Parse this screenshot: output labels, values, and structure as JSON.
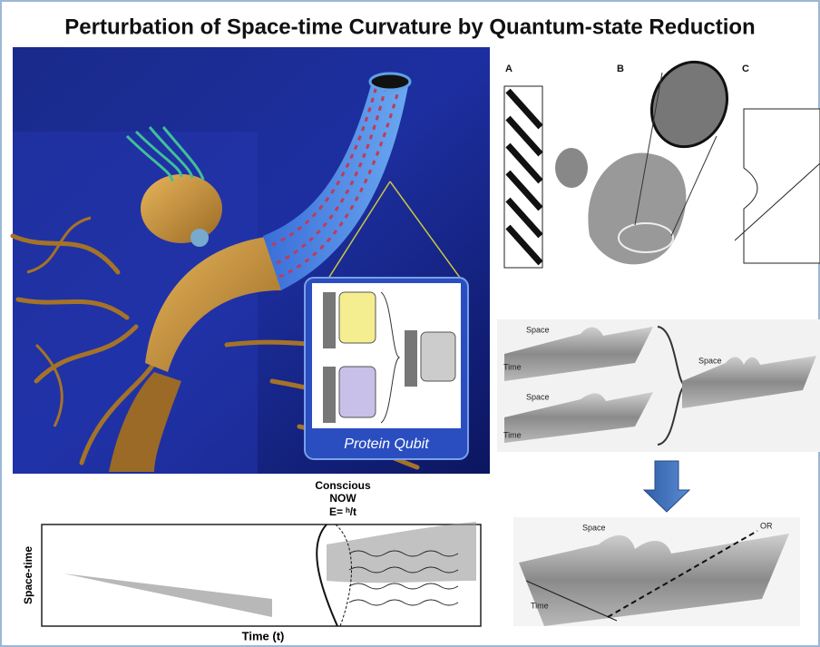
{
  "title": "Perturbation of Space-time Curvature by Quantum-state Reduction",
  "illustration": {
    "caption": "Protein Qubit"
  },
  "tubulin_panels": {
    "labels": [
      "A",
      "B",
      "C"
    ]
  },
  "superposition": {
    "labels": [
      {
        "space": "Space",
        "time": "Time"
      },
      {
        "space": "Space",
        "time": "Time"
      },
      {
        "space": "Space"
      }
    ]
  },
  "reduction": {
    "space": "Space",
    "time": "Time",
    "or": "OR"
  },
  "timeline": {
    "heading": [
      "Conscious",
      "NOW"
    ],
    "equation": "E= ʰ/t",
    "y_label": "Space-time",
    "x_label": "Time (t)"
  }
}
